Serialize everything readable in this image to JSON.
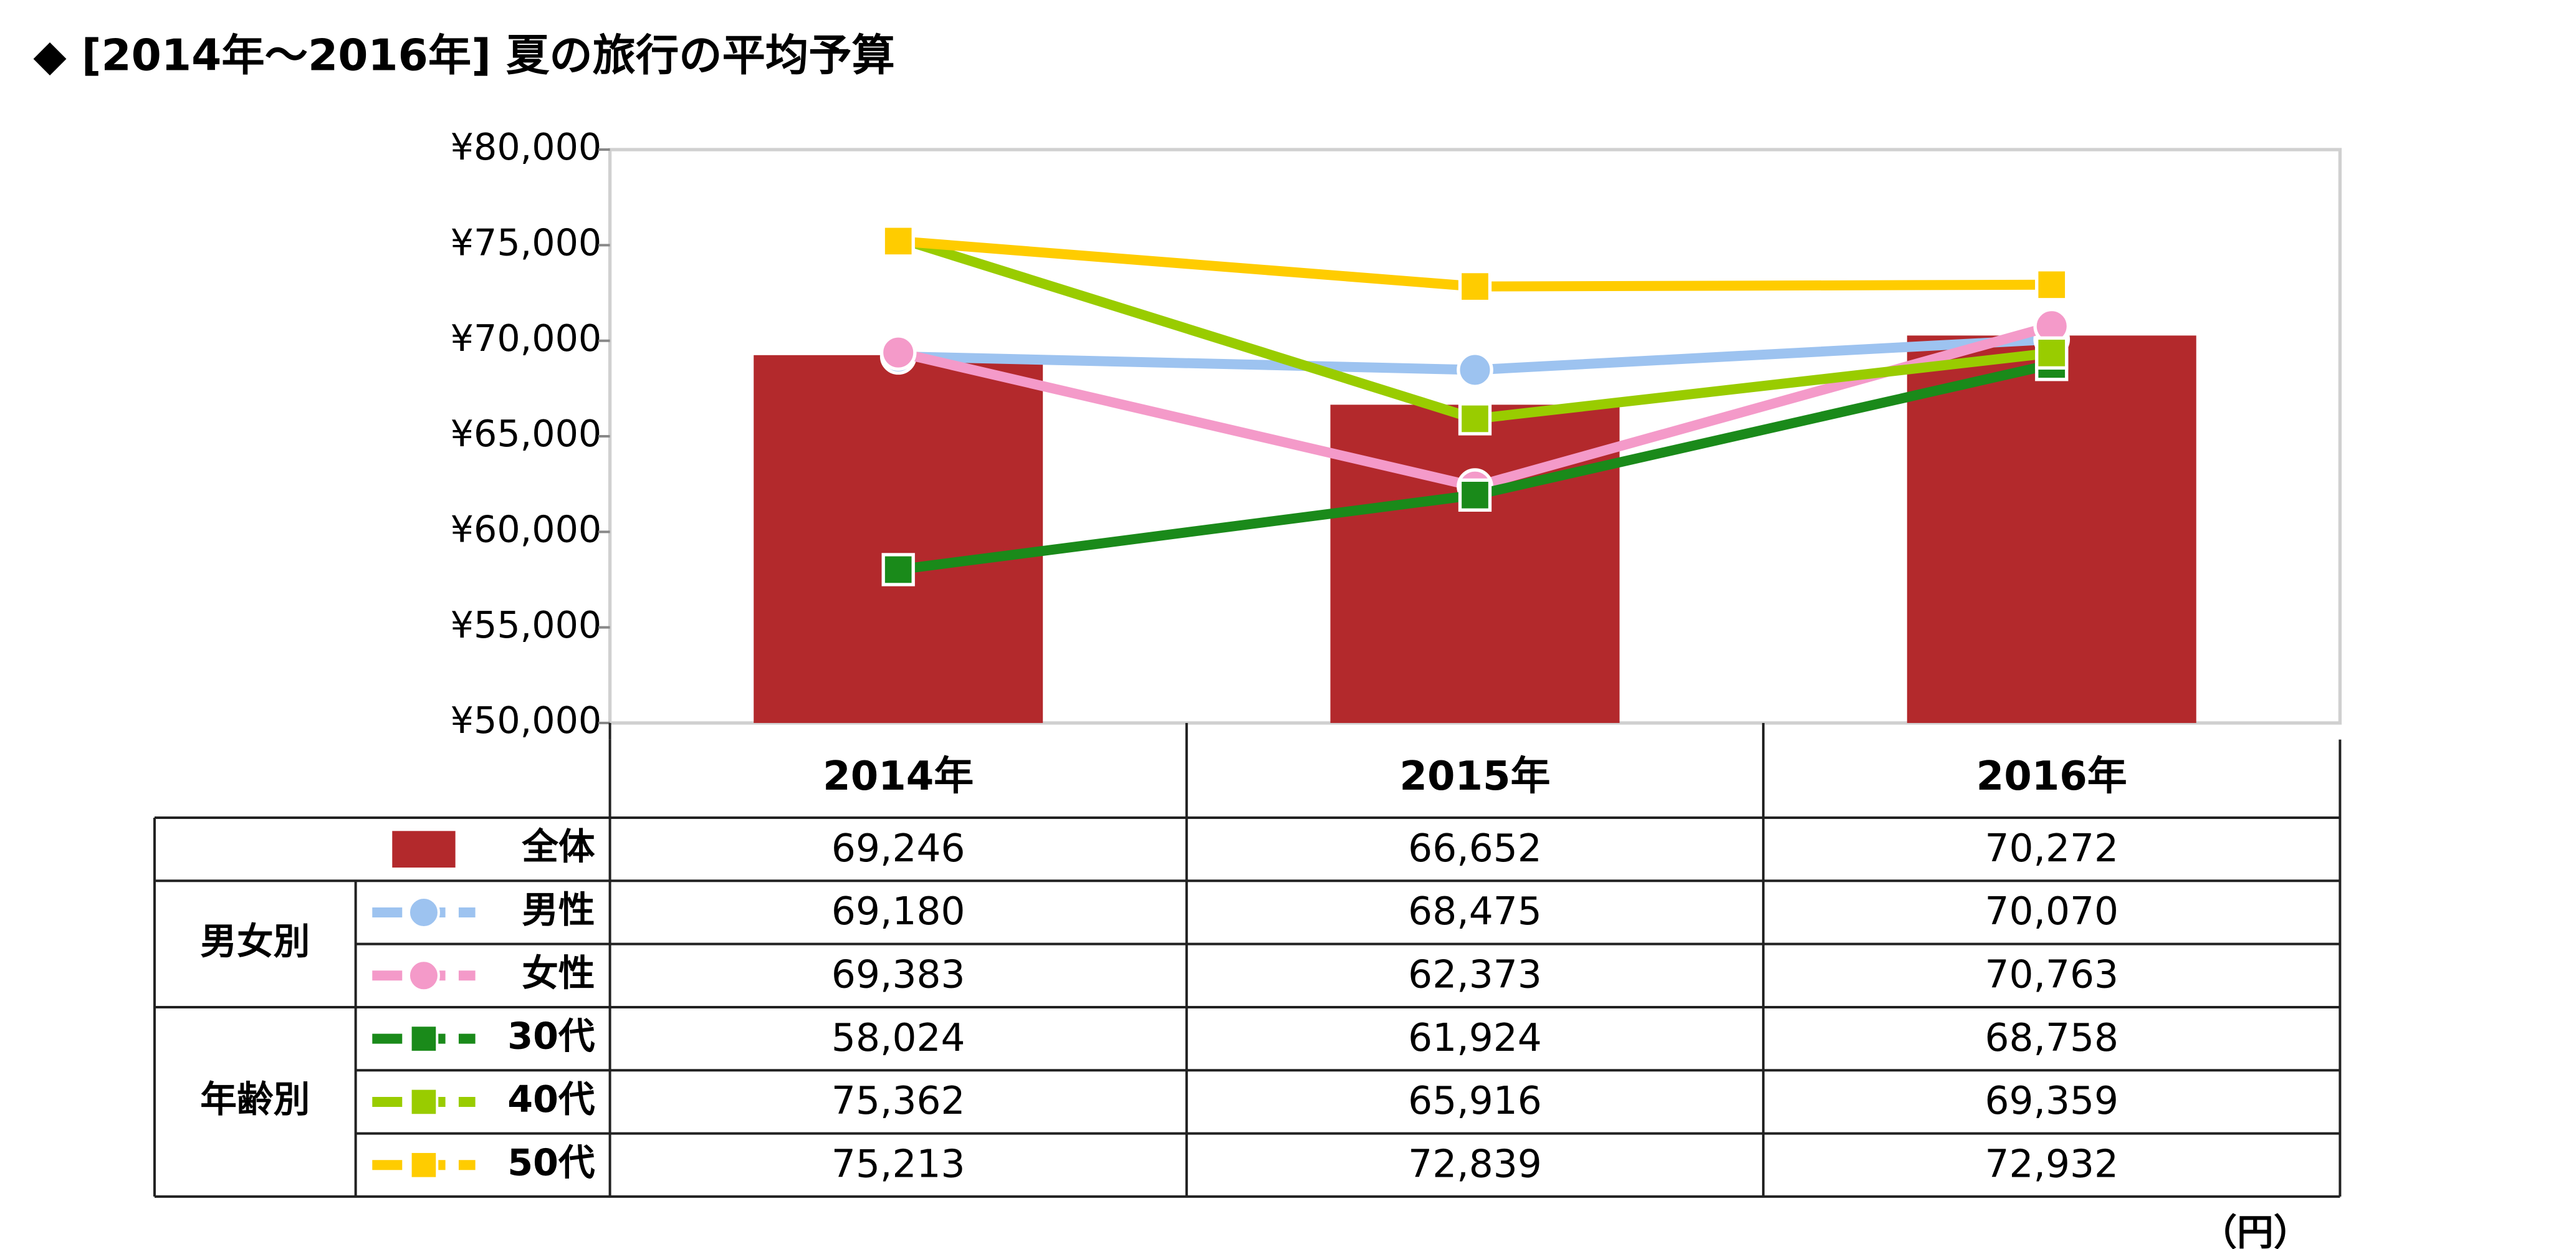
{
  "chart_data": {
    "type": "bar",
    "title": "◆ [2014年～2016年] 夏の旅行の平均予算",
    "categories": [
      "2014年",
      "2015年",
      "2016年"
    ],
    "ylim": [
      50000,
      80000
    ],
    "yticks": [
      {
        "value": 50000,
        "label": "¥50,000"
      },
      {
        "value": 55000,
        "label": "¥55,000"
      },
      {
        "value": 60000,
        "label": "¥60,000"
      },
      {
        "value": 65000,
        "label": "¥65,000"
      },
      {
        "value": 70000,
        "label": "¥70,000"
      },
      {
        "value": 75000,
        "label": "¥75,000"
      },
      {
        "value": 80000,
        "label": "¥80,000"
      }
    ],
    "grid": false,
    "unit_note": "（円）",
    "series": [
      {
        "name": "全体",
        "type": "bar",
        "color": "#b3292c",
        "values": [
          69246,
          66652,
          70272
        ],
        "value_labels": [
          "69,246",
          "66,652",
          "70,272"
        ]
      },
      {
        "name": "男性",
        "group": "男女別",
        "type": "line",
        "marker": "circle",
        "color": "#9dc3f0",
        "values": [
          69180,
          68475,
          70070
        ],
        "value_labels": [
          "69,180",
          "68,475",
          "70,070"
        ]
      },
      {
        "name": "女性",
        "group": "男女別",
        "type": "line",
        "marker": "circle",
        "color": "#f49ac9",
        "values": [
          69383,
          62373,
          70763
        ],
        "value_labels": [
          "69,383",
          "62,373",
          "70,763"
        ]
      },
      {
        "name": "30代",
        "group": "年齢別",
        "type": "line",
        "marker": "square",
        "color": "#1a8a1a",
        "values": [
          58024,
          61924,
          68758
        ],
        "value_labels": [
          "58,024",
          "61,924",
          "68,758"
        ]
      },
      {
        "name": "40代",
        "group": "年齢別",
        "type": "line",
        "marker": "square",
        "color": "#99cc00",
        "values": [
          75362,
          65916,
          69359
        ],
        "value_labels": [
          "75,362",
          "65,916",
          "69,359"
        ]
      },
      {
        "name": "50代",
        "group": "年齢別",
        "type": "line",
        "marker": "square",
        "color": "#ffcc00",
        "values": [
          75213,
          72839,
          72932
        ],
        "value_labels": [
          "75,213",
          "72,839",
          "72,932"
        ]
      }
    ]
  }
}
